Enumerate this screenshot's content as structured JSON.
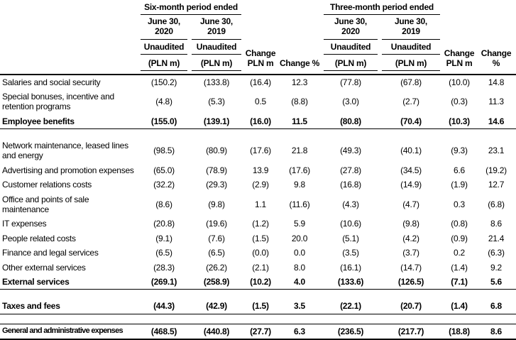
{
  "colors": {
    "text": "#000000",
    "background": "#ffffff",
    "rule": "#000000"
  },
  "table": {
    "header": {
      "six_month_group": "Six-month period ended",
      "three_month_group": "Three-month period ended",
      "date_2020": "June 30,\n2020",
      "date_2019": "June 30,\n2019",
      "unaudited": "Unaudited",
      "pln_m": "(PLN m)",
      "change_pln": "Change PLN m",
      "change_pct": "Change %"
    },
    "rows": [
      {
        "type": "normal",
        "label": "Salaries and social security",
        "values": [
          "(150.2)",
          "(133.8)",
          "(16.4)",
          "12.3",
          "(77.8)",
          "(67.8)",
          "(10.0)",
          "14.8"
        ]
      },
      {
        "type": "normal",
        "label": "Special bonuses, incentive and retention programs",
        "values": [
          "(4.8)",
          "(5.3)",
          "0.5",
          "(8.8)",
          "(3.0)",
          "(2.7)",
          "(0.3)",
          "11.3"
        ]
      },
      {
        "type": "subtotal",
        "label": "Employee benefits",
        "values": [
          "(155.0)",
          "(139.1)",
          "(16.0)",
          "11.5",
          "(80.8)",
          "(70.4)",
          "(10.3)",
          "14.6"
        ]
      },
      {
        "type": "blank"
      },
      {
        "type": "normal",
        "label": "Network maintenance, leased lines and energy",
        "values": [
          "(98.5)",
          "(80.9)",
          "(17.6)",
          "21.8",
          "(49.3)",
          "(40.1)",
          "(9.3)",
          "23.1"
        ]
      },
      {
        "type": "normal",
        "label": "Advertising and promotion expenses",
        "values": [
          "(65.0)",
          "(78.9)",
          "13.9",
          "(17.6)",
          "(27.8)",
          "(34.5)",
          "6.6",
          "(19.2)"
        ]
      },
      {
        "type": "normal",
        "label": "Customer relations costs",
        "values": [
          "(32.2)",
          "(29.3)",
          "(2.9)",
          "9.8",
          "(16.8)",
          "(14.9)",
          "(1.9)",
          "12.7"
        ]
      },
      {
        "type": "normal",
        "label": "Office and points of sale maintenance",
        "values": [
          "(8.6)",
          "(9.8)",
          "1.1",
          "(11.6)",
          "(4.3)",
          "(4.7)",
          "0.3",
          "(6.8)"
        ]
      },
      {
        "type": "normal",
        "label": "IT expenses",
        "values": [
          "(20.8)",
          "(19.6)",
          "(1.2)",
          "5.9",
          "(10.6)",
          "(9.8)",
          "(0.8)",
          "8.6"
        ]
      },
      {
        "type": "normal",
        "label": "People related costs",
        "values": [
          "(9.1)",
          "(7.6)",
          "(1.5)",
          "20.0",
          "(5.1)",
          "(4.2)",
          "(0.9)",
          "21.4"
        ]
      },
      {
        "type": "normal",
        "label": "Finance and legal services",
        "values": [
          "(6.5)",
          "(6.5)",
          "(0.0)",
          "0.0",
          "(3.5)",
          "(3.7)",
          "0.2",
          "(6.3)"
        ]
      },
      {
        "type": "normal",
        "label": "Other external services",
        "values": [
          "(28.3)",
          "(26.2)",
          "(2.1)",
          "8.0",
          "(16.1)",
          "(14.7)",
          "(1.4)",
          "9.2"
        ]
      },
      {
        "type": "subtotal",
        "label": "External services",
        "values": [
          "(269.1)",
          "(258.9)",
          "(10.2)",
          "4.0",
          "(133.6)",
          "(126.5)",
          "(7.1)",
          "5.6"
        ]
      },
      {
        "type": "blank"
      },
      {
        "type": "subtotal",
        "label": "Taxes and fees",
        "values": [
          "(44.3)",
          "(42.9)",
          "(1.5)",
          "3.5",
          "(22.1)",
          "(20.7)",
          "(1.4)",
          "6.8"
        ]
      },
      {
        "type": "blank"
      },
      {
        "type": "total",
        "label": "General and administrative expenses",
        "values": [
          "(468.5)",
          "(440.8)",
          "(27.7)",
          "6.3",
          "(236.5)",
          "(217.7)",
          "(18.8)",
          "8.6"
        ]
      }
    ]
  }
}
